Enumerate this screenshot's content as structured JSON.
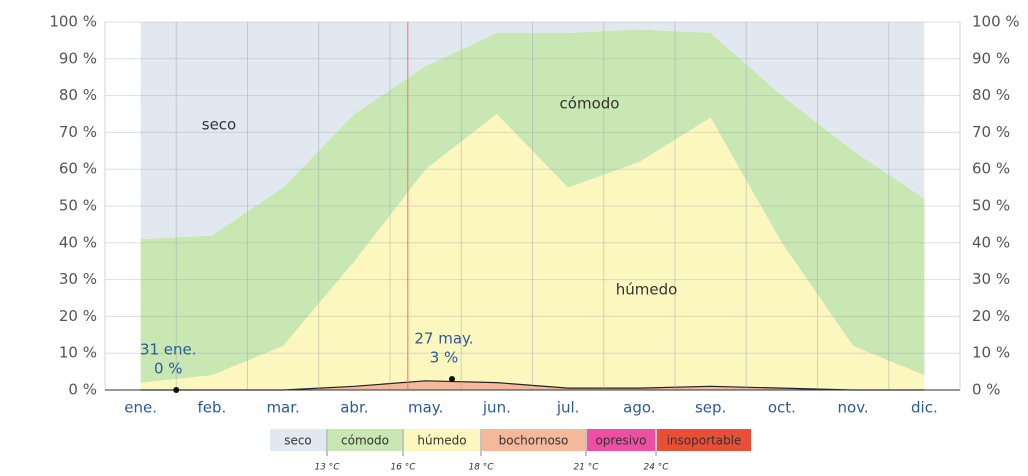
{
  "chart_data": {
    "type": "stacked-area",
    "categories": [
      "ene.",
      "feb.",
      "mar.",
      "abr.",
      "may.",
      "jun.",
      "jul.",
      "ago.",
      "sep.",
      "oct.",
      "nov.",
      "dic."
    ],
    "series": [
      {
        "name": "insoportable",
        "color": "#ea4f36",
        "values": [
          0,
          0,
          0,
          0,
          0,
          0,
          0,
          0,
          0,
          0,
          0,
          0
        ]
      },
      {
        "name": "opresivo",
        "color": "#ee4fa2",
        "values": [
          0,
          0,
          0,
          0,
          0,
          0,
          0,
          0,
          0,
          0,
          0,
          0
        ]
      },
      {
        "name": "bochornoso",
        "color": "#f4b89a",
        "values": [
          0,
          0,
          0,
          1,
          2.5,
          2,
          0.5,
          0.5,
          1,
          0.5,
          0,
          0
        ]
      },
      {
        "name": "húmedo",
        "color": "#fcf7be",
        "values": [
          2,
          4,
          12,
          34,
          57.5,
          73,
          54.5,
          61.5,
          73,
          39.5,
          12,
          4
        ]
      },
      {
        "name": "cómodo",
        "color": "#c9e7b3",
        "values": [
          39,
          38,
          43,
          40,
          28,
          22,
          42,
          36,
          23,
          40,
          53,
          48
        ]
      },
      {
        "name": "seco",
        "color": "#e2e8f0",
        "values": [
          59,
          58,
          45,
          25,
          12,
          3,
          3,
          2,
          3,
          20,
          35,
          48
        ]
      }
    ],
    "area_labels": [
      {
        "series": "seco",
        "text": "seco"
      },
      {
        "series": "cómodo",
        "text": "cómodo"
      },
      {
        "series": "húmedo",
        "text": "húmedo"
      }
    ],
    "annotations": [
      {
        "date": "31 ene.",
        "label": "0 %",
        "value": 0
      },
      {
        "date": "27 may.",
        "label": "3 %",
        "value": 3
      }
    ],
    "thresholds": [
      "13 °C",
      "16 °C",
      "18 °C",
      "21 °C",
      "24 °C"
    ],
    "ylim": [
      0,
      100
    ],
    "yticks": [
      {
        "value": 0,
        "label": "0 %"
      },
      {
        "value": 10,
        "label": "10 %"
      },
      {
        "value": 20,
        "label": "20 %"
      },
      {
        "value": 30,
        "label": "30 %"
      },
      {
        "value": 40,
        "label": "40 %"
      },
      {
        "value": 50,
        "label": "50 %"
      },
      {
        "value": 60,
        "label": "60 %"
      },
      {
        "value": 70,
        "label": "70 %"
      },
      {
        "value": 80,
        "label": "80 %"
      },
      {
        "value": 90,
        "label": "90 %"
      },
      {
        "value": 100,
        "label": "100 %"
      }
    ],
    "grid": true
  }
}
